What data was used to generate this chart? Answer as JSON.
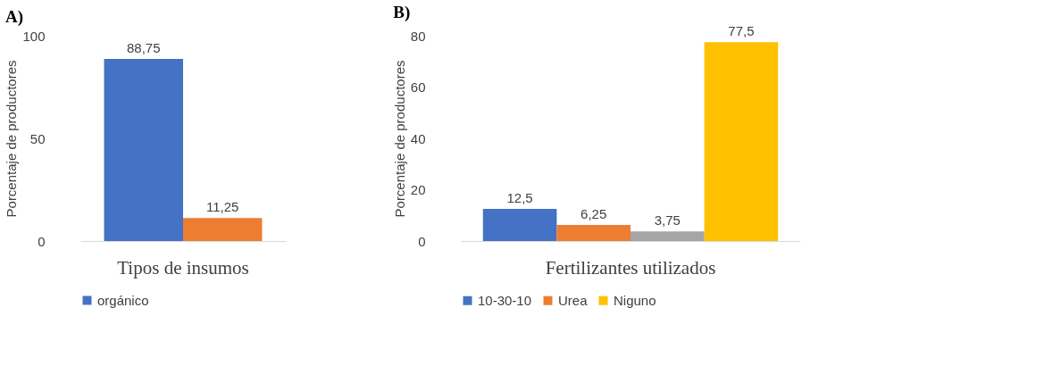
{
  "chart_data": [
    {
      "type": "bar",
      "title": "A)",
      "xlabel": "Tipos de insumos",
      "ylabel": "Porcentaje de productores",
      "categories": [
        null
      ],
      "ylim": [
        0,
        100
      ],
      "yticks": [
        0,
        50,
        100
      ],
      "legend": "bottom",
      "tick_labels": "y",
      "series": [
        {
          "name": "orgánico",
          "color": "#4472c4",
          "values": [
            88.75
          ],
          "value_labels": [
            "88,75"
          ]
        },
        {
          "color": "#ed7d31",
          "values": [
            11.25
          ],
          "value_labels": [
            "11,25"
          ]
        }
      ]
    },
    {
      "type": "bar",
      "title": "B)",
      "xlabel": "Fertilizantes utilizados",
      "ylabel": "Porcentaje de productores",
      "categories": [
        null
      ],
      "ylim": [
        0,
        80
      ],
      "yticks": [
        0,
        20,
        40,
        60,
        80
      ],
      "legend": "bottom",
      "tick_labels": "y",
      "series": [
        {
          "name": "10-30-10",
          "color": "#4472c4",
          "values": [
            12.5
          ],
          "value_labels": [
            "12,5"
          ]
        },
        {
          "name": "Urea",
          "color": "#ed7d31",
          "values": [
            6.25
          ],
          "value_labels": [
            "6,25"
          ]
        },
        {
          "color": "#a5a5a5",
          "values": [
            3.75
          ],
          "value_labels": [
            "3,75"
          ]
        },
        {
          "name": "Niguno",
          "color": "#ffc000",
          "values": [
            77.5
          ],
          "value_labels": [
            "77,5"
          ]
        }
      ]
    }
  ]
}
